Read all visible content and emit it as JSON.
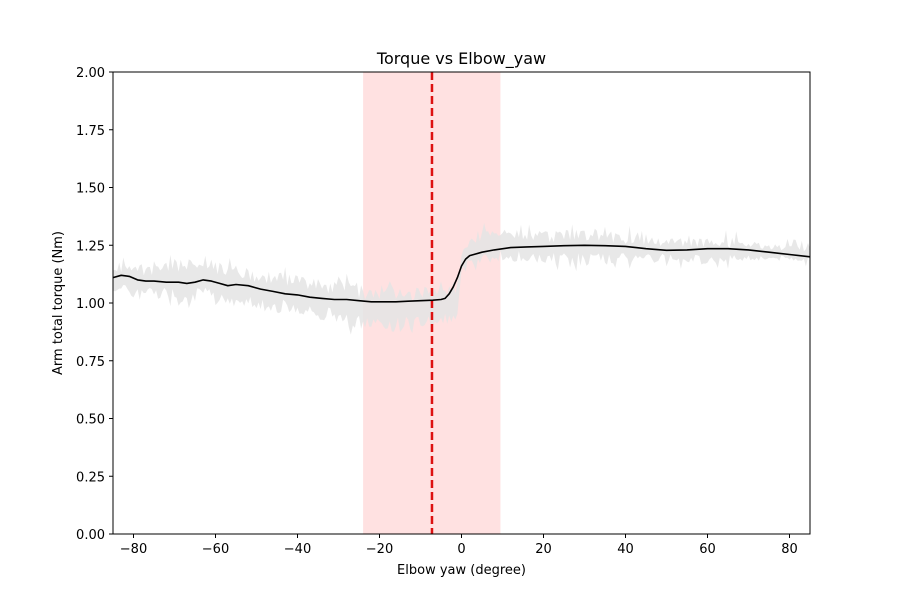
{
  "chart_data": {
    "type": "line",
    "title": "Torque vs Elbow_yaw",
    "xlabel": "Elbow yaw (degree)",
    "ylabel": "Arm total torque (Nm)",
    "xlim": [
      -85,
      85
    ],
    "ylim": [
      0,
      2
    ],
    "xticks": [
      -80,
      -60,
      -40,
      -20,
      0,
      20,
      40,
      60,
      80
    ],
    "yticks": [
      0.0,
      0.25,
      0.5,
      0.75,
      1.0,
      1.25,
      1.5,
      1.75,
      2.0
    ],
    "ytick_labels": [
      "0.00",
      "0.25",
      "0.50",
      "0.75",
      "1.00",
      "1.25",
      "1.50",
      "1.75",
      "2.00"
    ],
    "grid": false,
    "colors": {
      "mean_line": "#000000",
      "raw_band": "#e4e4e4",
      "highlight_region": "#ffe1e1",
      "reference_line": "#dd1111"
    },
    "highlight_region": [
      -24,
      9.5
    ],
    "reference_line_x": -7.2,
    "series": [
      {
        "role": "smoothed mean",
        "x": [
          -85,
          -83,
          -81,
          -79,
          -77,
          -75,
          -72,
          -69,
          -67,
          -65,
          -63,
          -61,
          -59,
          -57,
          -55,
          -52,
          -49,
          -46,
          -43,
          -40,
          -37,
          -34,
          -31,
          -28,
          -25,
          -22,
          -19,
          -16,
          -13,
          -10,
          -7,
          -5,
          -4,
          -3,
          -2,
          -1,
          0,
          1,
          2,
          3,
          5,
          8,
          12,
          16,
          20,
          25,
          30,
          35,
          40,
          45,
          50,
          55,
          60,
          65,
          70,
          75,
          80,
          85
        ],
        "y": [
          1.11,
          1.12,
          1.115,
          1.1,
          1.095,
          1.095,
          1.09,
          1.09,
          1.085,
          1.09,
          1.1,
          1.095,
          1.085,
          1.075,
          1.08,
          1.075,
          1.06,
          1.05,
          1.04,
          1.035,
          1.025,
          1.02,
          1.015,
          1.015,
          1.01,
          1.005,
          1.005,
          1.005,
          1.008,
          1.01,
          1.012,
          1.015,
          1.02,
          1.04,
          1.07,
          1.11,
          1.16,
          1.19,
          1.205,
          1.21,
          1.22,
          1.23,
          1.24,
          1.243,
          1.245,
          1.248,
          1.25,
          1.248,
          1.245,
          1.235,
          1.228,
          1.23,
          1.235,
          1.235,
          1.23,
          1.22,
          1.21,
          1.2
        ]
      },
      {
        "role": "raw data envelope upper",
        "x": [
          -85,
          -80,
          -75,
          -70,
          -65,
          -60,
          -55,
          -50,
          -45,
          -40,
          -35,
          -30,
          -25,
          -20,
          -15,
          -10,
          -5,
          -1,
          0,
          2,
          5,
          10,
          20,
          30,
          40,
          50,
          60,
          70,
          80,
          85
        ],
        "y": [
          1.16,
          1.17,
          1.17,
          1.18,
          1.2,
          1.19,
          1.17,
          1.15,
          1.13,
          1.12,
          1.11,
          1.1,
          1.09,
          1.08,
          1.08,
          1.07,
          1.08,
          1.1,
          1.25,
          1.3,
          1.32,
          1.33,
          1.31,
          1.33,
          1.3,
          1.28,
          1.28,
          1.27,
          1.25,
          1.24
        ]
      },
      {
        "role": "raw data envelope lower",
        "x": [
          -85,
          -80,
          -75,
          -70,
          -65,
          -60,
          -55,
          -50,
          -45,
          -40,
          -35,
          -30,
          -25,
          -20,
          -15,
          -10,
          -5,
          -1,
          0,
          2,
          5,
          10,
          20,
          30,
          40,
          50,
          60,
          70,
          80,
          85
        ],
        "y": [
          1.05,
          1.02,
          1.02,
          1.01,
          1.0,
          1.0,
          0.99,
          0.97,
          0.96,
          0.95,
          0.93,
          0.91,
          0.88,
          0.87,
          0.87,
          0.89,
          0.9,
          0.91,
          1.1,
          1.16,
          1.17,
          1.18,
          1.17,
          1.16,
          1.17,
          1.18,
          1.17,
          1.18,
          1.18,
          1.18
        ]
      }
    ]
  }
}
